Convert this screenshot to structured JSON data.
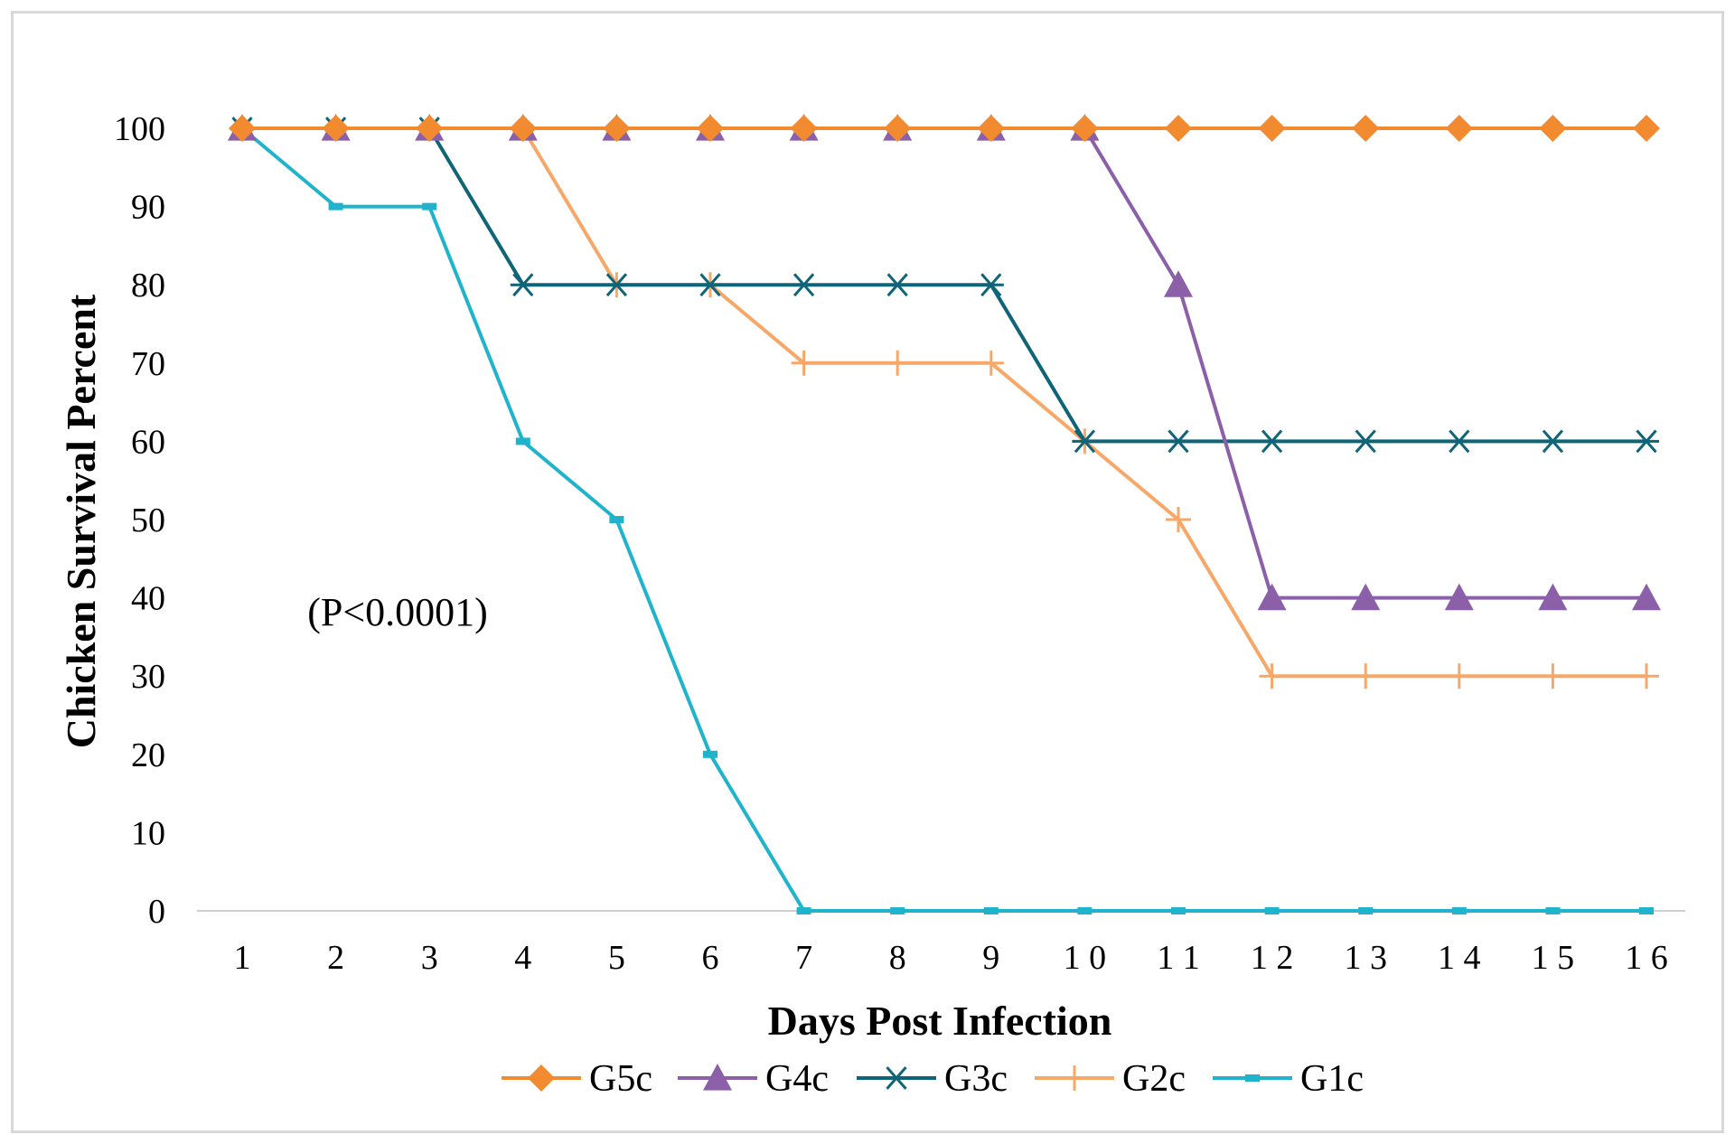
{
  "chart_data": {
    "type": "line",
    "title": "",
    "xlabel": "Days Post Infection",
    "ylabel": "Chicken Survival Percent",
    "annotation": "(P<0.0001)",
    "x": [
      1,
      2,
      3,
      4,
      5,
      6,
      7,
      8,
      9,
      10,
      11,
      12,
      13,
      14,
      15,
      16
    ],
    "x_tick_labels": [
      "1",
      "2",
      "3",
      "4",
      "5",
      "6",
      "7",
      "8",
      "9",
      "1 0",
      "1 1",
      "1 2",
      "1 3",
      "1 4",
      "1 5",
      "1 6"
    ],
    "y_tick_labels": [
      "0",
      "10",
      "20",
      "30",
      "40",
      "50",
      "60",
      "70",
      "80",
      "90",
      "100"
    ],
    "ylim": [
      0,
      100
    ],
    "grid": false,
    "legend_position": "bottom",
    "series": [
      {
        "name": "G5c",
        "color": "#f28a30",
        "marker": "diamond",
        "values": [
          100,
          100,
          100,
          100,
          100,
          100,
          100,
          100,
          100,
          100,
          100,
          100,
          100,
          100,
          100,
          100
        ]
      },
      {
        "name": "G4c",
        "color": "#8c60a8",
        "marker": "triangle",
        "values": [
          100,
          100,
          100,
          100,
          100,
          100,
          100,
          100,
          100,
          100,
          80,
          40,
          40,
          40,
          40,
          40
        ]
      },
      {
        "name": "G3c",
        "color": "#0f6478",
        "marker": "asterisk",
        "values": [
          100,
          100,
          100,
          80,
          80,
          80,
          80,
          80,
          80,
          60,
          60,
          60,
          60,
          60,
          60,
          60
        ]
      },
      {
        "name": "G2c",
        "color": "#f7a868",
        "marker": "plus",
        "values": [
          100,
          100,
          100,
          100,
          80,
          80,
          70,
          70,
          70,
          60,
          50,
          30,
          30,
          30,
          30,
          30
        ]
      },
      {
        "name": "G1c",
        "color": "#1fb3cc",
        "marker": "dash",
        "values": [
          100,
          90,
          90,
          60,
          50,
          20,
          0,
          0,
          0,
          0,
          0,
          0,
          0,
          0,
          0,
          0
        ]
      }
    ]
  }
}
